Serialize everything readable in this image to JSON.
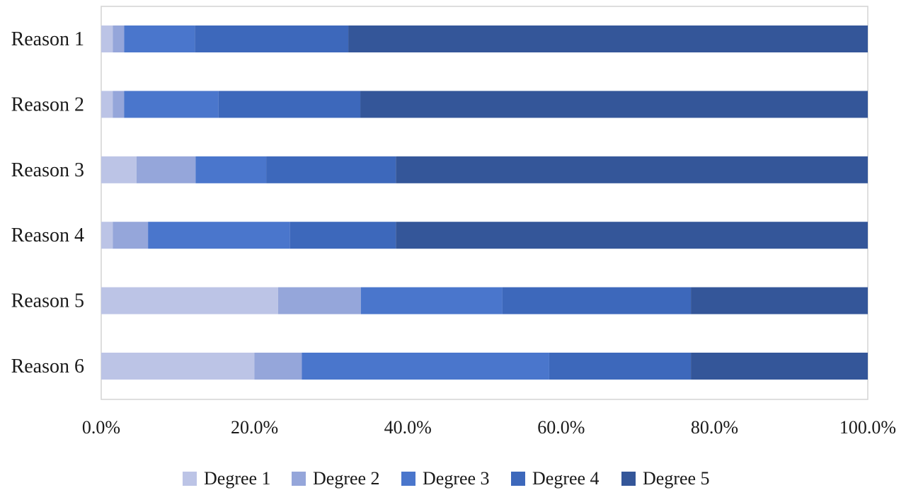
{
  "chart_data": {
    "type": "bar",
    "orientation": "horizontal",
    "stacked": true,
    "title": "",
    "xlabel": "",
    "ylabel": "",
    "xlim": [
      0,
      100
    ],
    "x_ticks": [
      "0.0%",
      "20.0%",
      "40.0%",
      "60.0%",
      "80.0%",
      "100.0%"
    ],
    "grid": false,
    "legend_position": "bottom",
    "categories": [
      "Reason 1",
      "Reason 2",
      "Reason 3",
      "Reason 4",
      "Reason 5",
      "Reason 6"
    ],
    "series": [
      {
        "name": "Degree 1",
        "color": "#bcc4e6",
        "values": [
          1.5,
          1.5,
          4.6,
          1.5,
          23.1,
          20.0
        ]
      },
      {
        "name": "Degree 2",
        "color": "#95a6da",
        "values": [
          1.5,
          1.5,
          7.7,
          4.6,
          10.8,
          6.2
        ]
      },
      {
        "name": "Degree 3",
        "color": "#4a76cc",
        "values": [
          9.2,
          12.3,
          9.2,
          18.5,
          18.5,
          32.3
        ]
      },
      {
        "name": "Degree 4",
        "color": "#3d68bb",
        "values": [
          20.0,
          18.5,
          16.9,
          13.8,
          24.6,
          18.5
        ]
      },
      {
        "name": "Degree 5",
        "color": "#345699",
        "values": [
          67.7,
          66.2,
          61.5,
          61.5,
          23.1,
          23.1
        ]
      }
    ]
  }
}
